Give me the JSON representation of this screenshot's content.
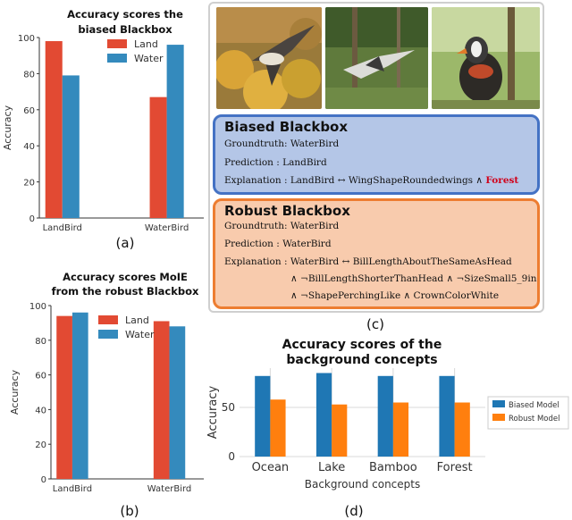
{
  "chart_data": [
    {
      "panel": "(a)",
      "type": "bar",
      "title": "Accuracy scores the biased Blackbox",
      "title_lines": [
        "Accuracy scores the",
        "biased Blackbox"
      ],
      "ylabel": "Accuracy",
      "categories": [
        "LandBird",
        "WaterBird"
      ],
      "series": [
        {
          "name": "Land",
          "color": "#e24a33",
          "values": [
            98,
            67
          ]
        },
        {
          "name": "Water",
          "color": "#348abd",
          "values": [
            79,
            96
          ]
        }
      ],
      "ylim": [
        0,
        100
      ],
      "yticks": [
        0,
        20,
        40,
        60,
        80,
        100
      ],
      "legend": "top-right"
    },
    {
      "panel": "(b)",
      "type": "bar",
      "title": "Accuracy scores MoIE from the robust Blackbox",
      "title_lines": [
        "Accuracy scores MoIE",
        "from the robust Blackbox"
      ],
      "ylabel": "Accuracy",
      "categories": [
        "LandBird",
        "WaterBird"
      ],
      "series": [
        {
          "name": "Land",
          "color": "#e24a33",
          "values": [
            94,
            91
          ]
        },
        {
          "name": "Water",
          "color": "#348abd",
          "values": [
            96,
            88
          ]
        }
      ],
      "ylim": [
        0,
        100
      ],
      "yticks": [
        0,
        20,
        40,
        60,
        80,
        100
      ],
      "legend": "top-center"
    },
    {
      "panel": "(d)",
      "type": "bar",
      "title": "Accuracy scores of the background concepts",
      "title_lines": [
        "Accuracy scores of the",
        "background concepts"
      ],
      "xlabel": "Background concepts",
      "ylabel": "Accuracy",
      "categories": [
        "Ocean",
        "Lake",
        "Bamboo",
        "Forest"
      ],
      "series": [
        {
          "name": "Biased Model",
          "color": "#1f77b4",
          "values": [
            82,
            85,
            82,
            82
          ]
        },
        {
          "name": "Robust Model",
          "color": "#ff7f0e",
          "values": [
            58,
            53,
            55,
            55
          ]
        }
      ],
      "ylim": [
        0,
        90
      ],
      "yticks": [
        0,
        50
      ],
      "grid": true,
      "legend": "right"
    }
  ],
  "panel_c": {
    "label": "(c)",
    "biased": {
      "title": "Biased Blackbox",
      "groundtruth": "Groundtruth:  WaterBird",
      "prediction": "Prediction : LandBird",
      "explanation_prefix": "Explanation : LandBird ↔ WingShapeRoundedwings ∧ ",
      "explanation_highlight": "Forest"
    },
    "robust": {
      "title": "Robust Blackbox",
      "groundtruth": "Groundtruth:  WaterBird",
      "prediction": "Prediction : WaterBird",
      "explanation_1": "Explanation : WaterBird ↔ BillLengthAboutTheSameAsHead",
      "explanation_2": "∧ ¬BillLengthShorterThanHead  ∧ ¬SizeSmall5_9in",
      "explanation_3": "∧ ¬ShapePerchingLike ∧ CrownColorWhite"
    }
  },
  "panel_labels": {
    "a": "(a)",
    "b": "(b)",
    "d": "(d)"
  },
  "colors": {
    "land": "#e24a33",
    "water": "#348abd",
    "biased_box": "#b4c6e7",
    "robust_box": "#f8cbad"
  }
}
